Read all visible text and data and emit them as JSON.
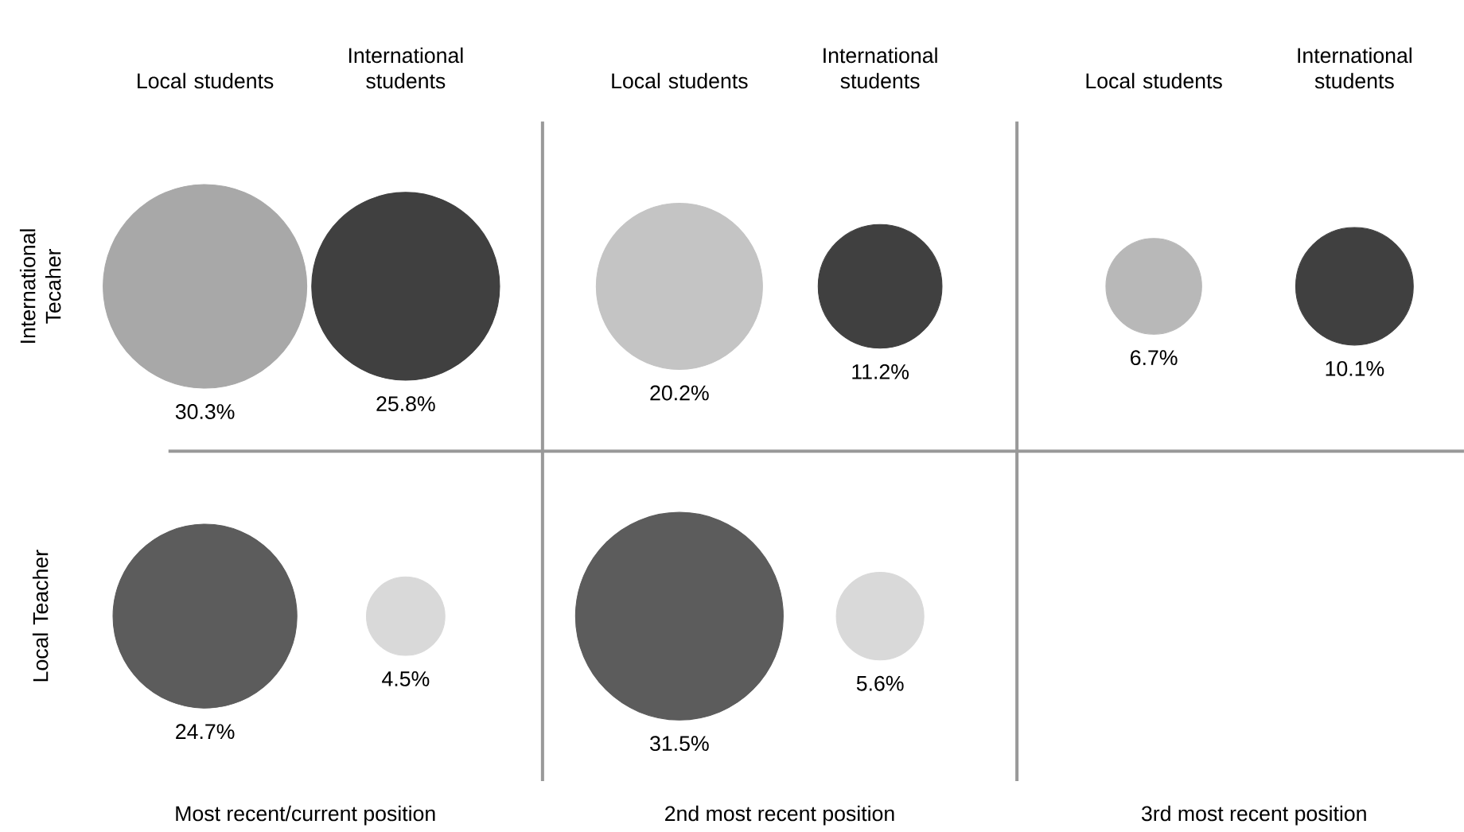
{
  "chart_data": {
    "type": "other",
    "categories": [
      "Local students",
      "International students",
      "Local students",
      "International students",
      "Local students",
      "International students"
    ],
    "series": [
      {
        "name": "International Tecaher",
        "values": [
          30.3,
          25.8,
          20.2,
          11.2,
          6.7,
          10.1
        ],
        "colors": [
          "#a8a8a8",
          "#404040",
          "#c4c4c4",
          "#404040",
          "#b8b8b8",
          "#404040"
        ],
        "value_labels": [
          "30.3%",
          "25.8%",
          "20.2%",
          "11.2%",
          "6.7%",
          "10.1%"
        ]
      },
      {
        "name": "Local Teacher",
        "values": [
          24.7,
          4.5,
          31.5,
          5.6,
          null,
          null
        ],
        "colors": [
          "#5c5c5c",
          "#d9d9d9",
          "#5c5c5c",
          "#d9d9d9",
          null,
          null
        ],
        "value_labels": [
          "24.7%",
          "4.5%",
          "31.5%",
          "5.6%",
          null,
          null
        ]
      }
    ],
    "annotations": [
      "Most recent/current position",
      "2nd most recent position",
      "3rd most recent position"
    ]
  }
}
